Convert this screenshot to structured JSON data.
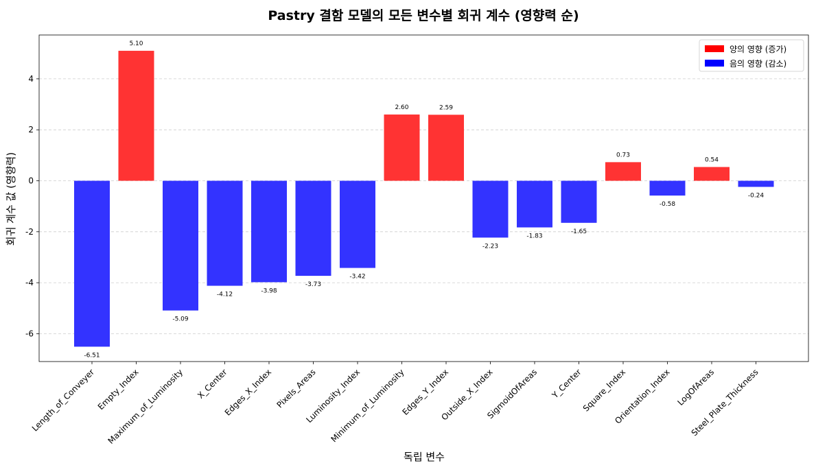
{
  "chart_data": {
    "type": "bar",
    "title": "Pastry 결함 모델의 모든 변수별 회귀 계수 (영향력 순)",
    "xlabel": "독립 변수",
    "ylabel": "회귀 계수 값 (영향력)",
    "categories": [
      "Length_of_Conveyer",
      "Empty_Index",
      "Maximum_of_Luminosity",
      "X_Center",
      "Edges_X_Index",
      "Pixels_Areas",
      "Luminosity_Index",
      "Minimum_of_Luminosity",
      "Edges_Y_Index",
      "Outside_X_Index",
      "SigmoidOfAreas",
      "Y_Center",
      "Square_Index",
      "Orientation_Index",
      "LogOfAreas",
      "Steel_Plate_Thickness"
    ],
    "values": [
      -6.51,
      5.1,
      -5.09,
      -4.12,
      -3.98,
      -3.73,
      -3.42,
      2.6,
      2.59,
      -2.23,
      -1.83,
      -1.65,
      0.73,
      -0.58,
      0.54,
      -0.24
    ],
    "value_labels": [
      "-6.51",
      "5.10",
      "-5.09",
      "-4.12",
      "-3.98",
      "-3.73",
      "-3.42",
      "2.60",
      "2.59",
      "-2.23",
      "-1.83",
      "-1.65",
      "0.73",
      "-0.58",
      "0.54",
      "-0.24"
    ],
    "yticks": [
      -6,
      -4,
      -2,
      0,
      2,
      4
    ],
    "ytick_labels": [
      "-6",
      "-4",
      "-2",
      "0",
      "2",
      "4"
    ],
    "ylim": [
      -7.1,
      5.7
    ],
    "grid": "y-dashed",
    "legend": {
      "placement": "top-right",
      "entries": [
        {
          "label": "양의 영향 (증가)",
          "color": "#ff0000"
        },
        {
          "label": "음의 영향 (감소)",
          "color": "#0000ff"
        }
      ]
    },
    "colors": {
      "positive": "#ff3333",
      "negative": "#3333ff"
    }
  }
}
